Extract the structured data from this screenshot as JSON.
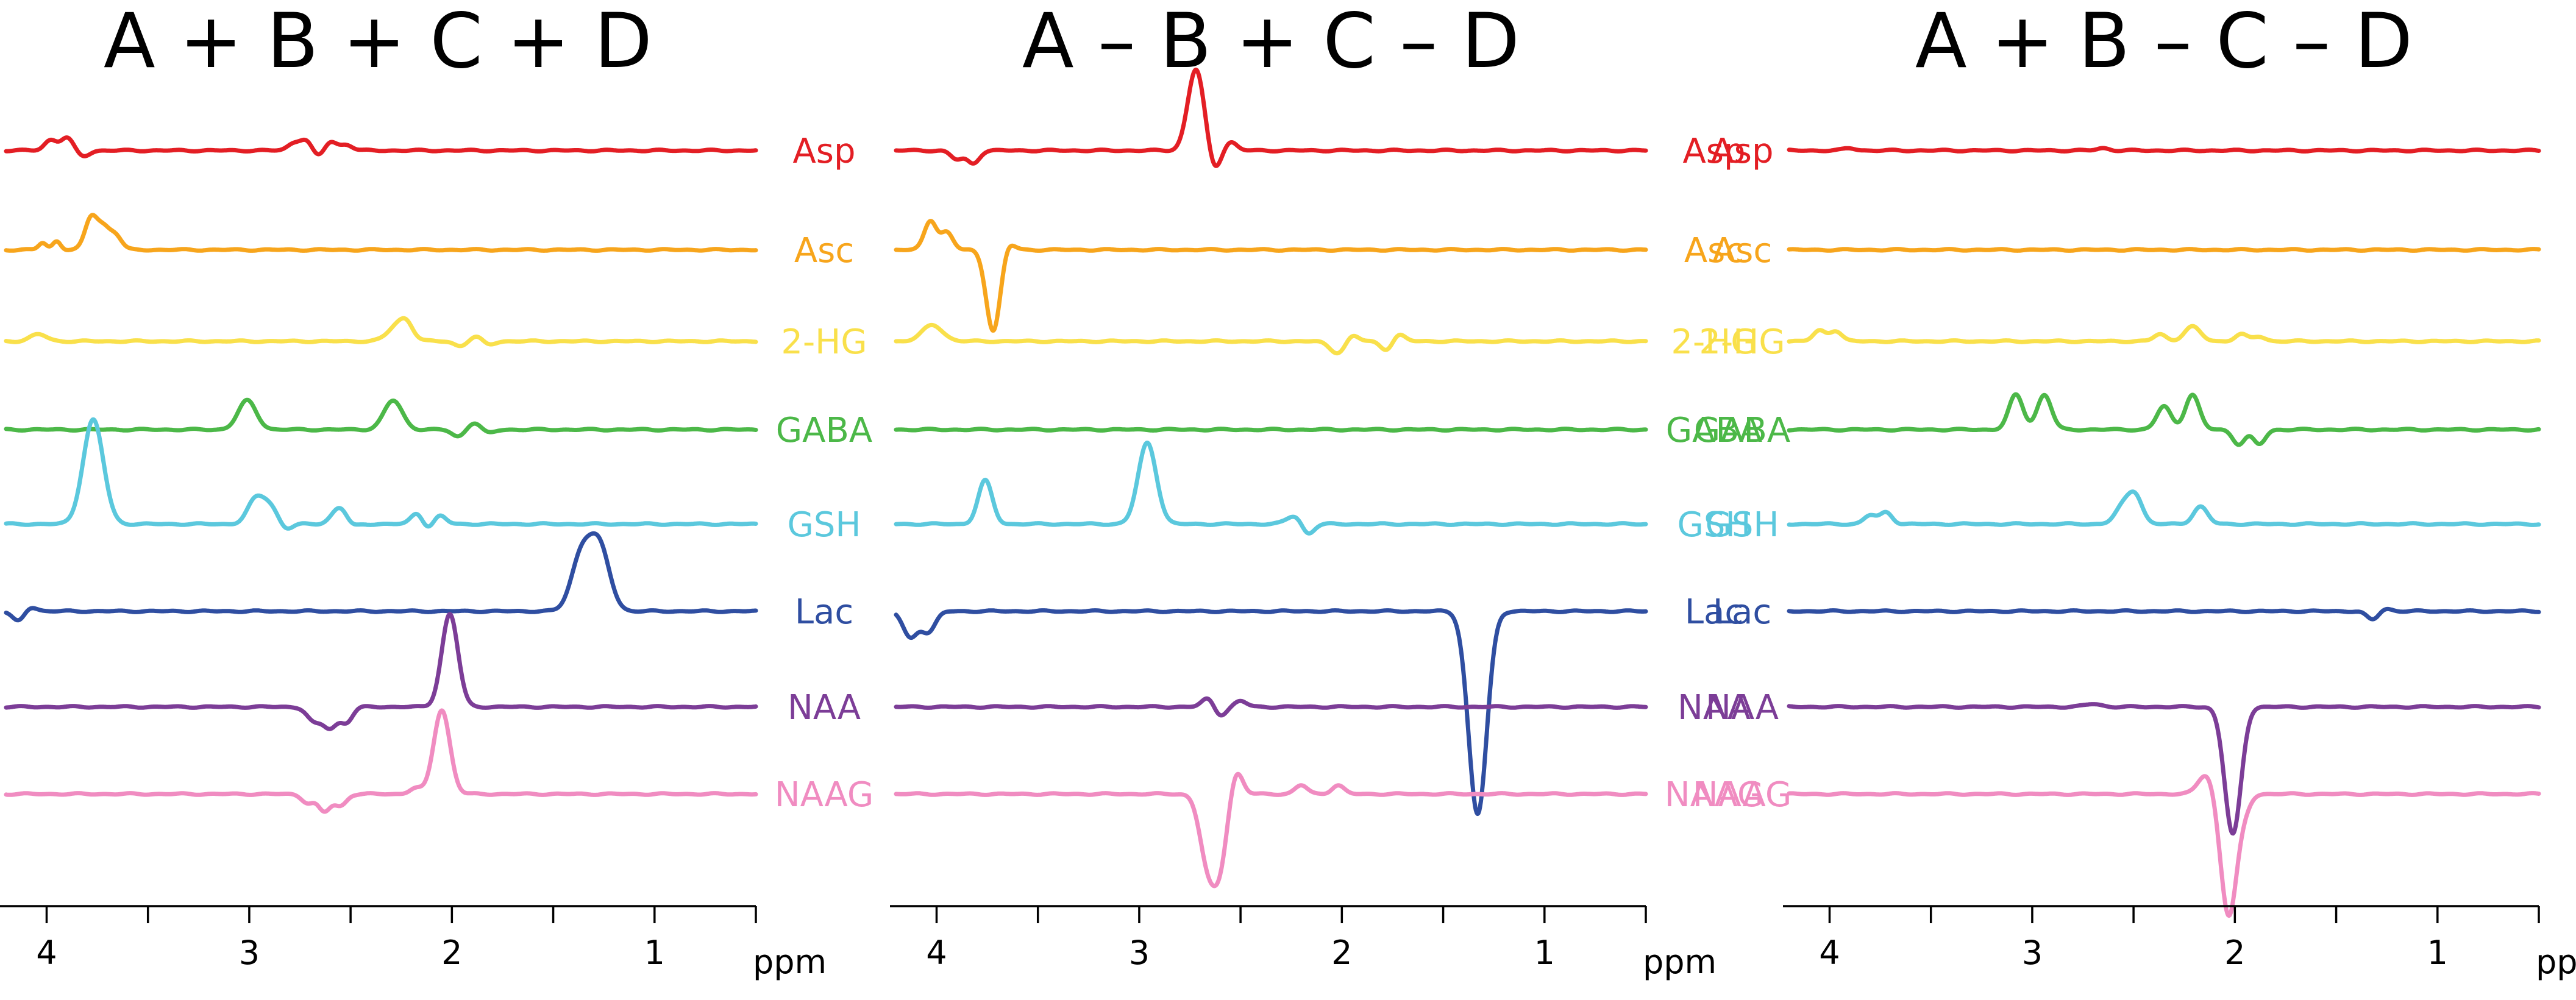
{
  "colors": {
    "Asp": "#e31e24",
    "Asc": "#f7a51c",
    "2-HG": "#f9e04b",
    "GABA": "#4cb848",
    "GSH": "#5bc8dd",
    "Lac": "#2f4ea1",
    "NAA": "#7c3d97",
    "NAAG": "#f08cc1"
  },
  "chart_data": [
    {
      "type": "line",
      "title": "A + B + C + D",
      "xlabel": "ppm",
      "x_reversed": true,
      "xlim": [
        4.2,
        0.5
      ],
      "x_ticks": [
        "4",
        "3",
        "2",
        "1"
      ],
      "series": [
        {
          "name": "Asp",
          "peaks": [
            [
              3.98,
              0.18,
              0.03
            ],
            [
              3.9,
              0.22,
              0.03
            ],
            [
              3.82,
              -0.1,
              0.03
            ],
            [
              2.78,
              0.12,
              0.03
            ],
            [
              2.72,
              0.18,
              0.03
            ],
            [
              2.66,
              -0.12,
              0.03
            ],
            [
              2.6,
              0.16,
              0.03
            ],
            [
              2.52,
              0.1,
              0.03
            ]
          ]
        },
        {
          "name": "Asc",
          "peaks": [
            [
              4.02,
              0.12,
              0.02
            ],
            [
              3.95,
              0.15,
              0.02
            ],
            [
              3.78,
              0.55,
              0.03
            ],
            [
              3.72,
              0.35,
              0.03
            ],
            [
              3.66,
              0.25,
              0.03
            ]
          ]
        },
        {
          "name": "2-HG",
          "peaks": [
            [
              4.04,
              0.12,
              0.04
            ],
            [
              2.26,
              0.3,
              0.05
            ],
            [
              2.22,
              0.15,
              0.03
            ],
            [
              1.96,
              -0.08,
              0.03
            ],
            [
              1.88,
              0.08,
              0.03
            ],
            [
              1.82,
              -0.06,
              0.03
            ]
          ]
        },
        {
          "name": "GABA",
          "peaks": [
            [
              3.01,
              0.5,
              0.045
            ],
            [
              2.29,
              0.5,
              0.045
            ],
            [
              1.97,
              -0.12,
              0.03
            ],
            [
              1.89,
              0.12,
              0.03
            ],
            [
              1.82,
              -0.06,
              0.03
            ]
          ]
        },
        {
          "name": "GSH",
          "peaks": [
            [
              3.77,
              1.8,
              0.05
            ],
            [
              2.97,
              0.4,
              0.04
            ],
            [
              2.9,
              0.3,
              0.04
            ],
            [
              2.82,
              -0.1,
              0.03
            ],
            [
              2.55,
              0.3,
              0.04
            ],
            [
              2.5,
              -0.1,
              0.03
            ],
            [
              2.17,
              0.2,
              0.03
            ],
            [
              2.12,
              -0.1,
              0.03
            ],
            [
              2.06,
              0.15,
              0.03
            ]
          ]
        },
        {
          "name": "Lac",
          "peaks": [
            [
              4.14,
              -0.18,
              0.03
            ],
            [
              4.08,
              0.08,
              0.03
            ],
            [
              1.36,
              0.95,
              0.05
            ],
            [
              1.27,
              1.05,
              0.05
            ]
          ]
        },
        {
          "name": "NAA",
          "peaks": [
            [
              2.68,
              -0.25,
              0.035
            ],
            [
              2.6,
              -0.35,
              0.035
            ],
            [
              2.52,
              -0.25,
              0.03
            ],
            [
              2.01,
              1.6,
              0.04
            ]
          ]
        },
        {
          "name": "NAAG",
          "peaks": [
            [
              2.71,
              -0.15,
              0.03
            ],
            [
              2.63,
              -0.3,
              0.03
            ],
            [
              2.55,
              -0.2,
              0.03
            ],
            [
              2.05,
              1.45,
              0.04
            ],
            [
              2.18,
              0.1,
              0.03
            ]
          ]
        }
      ]
    },
    {
      "type": "line",
      "title": "A – B + C – D",
      "xlabel": "ppm",
      "x_reversed": true,
      "xlim": [
        4.2,
        0.5
      ],
      "x_ticks": [
        "4",
        "3",
        "2",
        "1"
      ],
      "series": [
        {
          "name": "Asp",
          "peaks": [
            [
              3.9,
              -0.15,
              0.03
            ],
            [
              3.82,
              -0.22,
              0.03
            ],
            [
              2.72,
              1.4,
              0.04
            ],
            [
              2.63,
              -0.35,
              0.03
            ],
            [
              2.55,
              0.15,
              0.03
            ]
          ]
        },
        {
          "name": "Asc",
          "peaks": [
            [
              4.03,
              0.5,
              0.03
            ],
            [
              3.95,
              0.3,
              0.03
            ],
            [
              3.72,
              -1.4,
              0.035
            ],
            [
              3.65,
              0.15,
              0.03
            ]
          ]
        },
        {
          "name": "2-HG",
          "peaks": [
            [
              4.02,
              0.28,
              0.05
            ],
            [
              2.02,
              -0.2,
              0.04
            ],
            [
              1.95,
              0.12,
              0.03
            ],
            [
              1.78,
              -0.15,
              0.03
            ],
            [
              1.72,
              0.12,
              0.03
            ]
          ]
        },
        {
          "name": "GABA",
          "peaks": []
        },
        {
          "name": "GSH",
          "peaks": [
            [
              3.76,
              0.75,
              0.035
            ],
            [
              2.96,
              1.4,
              0.045
            ],
            [
              2.23,
              0.15,
              0.04
            ],
            [
              2.17,
              -0.2,
              0.03
            ]
          ]
        },
        {
          "name": "Lac",
          "peaks": [
            [
              4.13,
              -0.45,
              0.035
            ],
            [
              4.04,
              -0.35,
              0.035
            ],
            [
              1.33,
              -3.5,
              0.045
            ]
          ]
        },
        {
          "name": "NAA",
          "peaks": [
            [
              2.66,
              0.15,
              0.03
            ],
            [
              2.6,
              -0.15,
              0.03
            ],
            [
              2.5,
              0.1,
              0.03
            ]
          ]
        },
        {
          "name": "NAAG",
          "peaks": [
            [
              2.66,
              -1.2,
              0.04
            ],
            [
              2.6,
              -1.0,
              0.035
            ],
            [
              2.52,
              0.4,
              0.03
            ],
            [
              2.2,
              0.15,
              0.03
            ],
            [
              2.02,
              0.15,
              0.03
            ]
          ]
        }
      ]
    },
    {
      "type": "line",
      "title": "A + B – C – D",
      "xlabel": "ppm",
      "x_reversed": true,
      "xlim": [
        4.2,
        0.5
      ],
      "x_ticks": [
        "4",
        "3",
        "2",
        "1"
      ],
      "series": [
        {
          "name": "Asp",
          "peaks": [
            [
              3.9,
              0.04,
              0.03
            ],
            [
              2.65,
              0.04,
              0.03
            ]
          ]
        },
        {
          "name": "Asc",
          "peaks": []
        },
        {
          "name": "2-HG",
          "peaks": [
            [
              4.05,
              0.18,
              0.03
            ],
            [
              3.97,
              0.18,
              0.03
            ],
            [
              2.37,
              0.12,
              0.03
            ],
            [
              2.21,
              0.25,
              0.04
            ],
            [
              1.97,
              0.12,
              0.03
            ],
            [
              1.88,
              0.08,
              0.03
            ]
          ]
        },
        {
          "name": "GABA",
          "peaks": [
            [
              3.08,
              0.6,
              0.035
            ],
            [
              2.94,
              0.6,
              0.035
            ],
            [
              2.35,
              0.4,
              0.035
            ],
            [
              2.21,
              0.6,
              0.035
            ],
            [
              1.98,
              -0.25,
              0.03
            ],
            [
              1.88,
              -0.25,
              0.03
            ]
          ]
        },
        {
          "name": "GSH",
          "peaks": [
            [
              3.8,
              0.15,
              0.03
            ],
            [
              3.72,
              0.2,
              0.03
            ],
            [
              2.55,
              0.3,
              0.04
            ],
            [
              2.49,
              0.45,
              0.035
            ],
            [
              2.17,
              0.3,
              0.035
            ]
          ]
        },
        {
          "name": "Lac",
          "peaks": [
            [
              1.32,
              -0.15,
              0.03
            ],
            [
              1.26,
              0.05,
              0.03
            ]
          ]
        },
        {
          "name": "NAA",
          "peaks": [
            [
              2.7,
              0.05,
              0.04
            ],
            [
              2.01,
              -2.2,
              0.04
            ]
          ]
        },
        {
          "name": "NAAG",
          "peaks": [
            [
              2.14,
              0.35,
              0.04
            ],
            [
              2.03,
              -2.1,
              0.04
            ],
            [
              1.95,
              -0.2,
              0.03
            ]
          ]
        }
      ]
    }
  ]
}
